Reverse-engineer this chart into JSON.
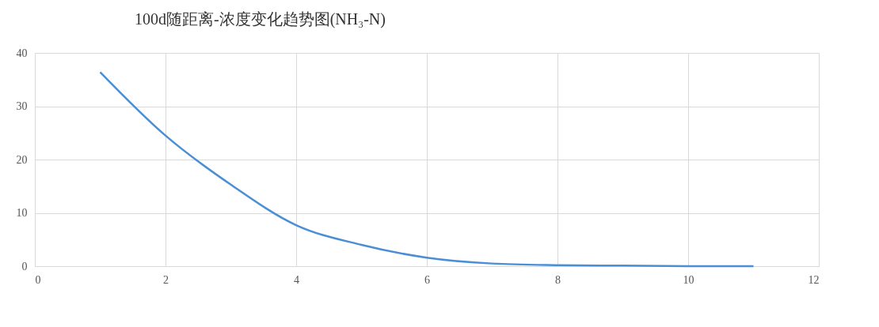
{
  "chart_data": {
    "type": "line",
    "title": "100d随距离-浓度变化趋势图(NH₃-N)",
    "x": [
      1,
      2,
      3,
      4,
      5,
      6,
      7,
      8,
      9,
      10,
      11
    ],
    "series": [
      {
        "color": "#4a8fd6",
        "values": [
          36.4,
          24.5,
          15.3,
          7.7,
          4.0,
          1.6,
          0.5,
          0.2,
          0.1,
          0,
          0
        ]
      }
    ],
    "xlim": [
      0,
      12
    ],
    "xticks": [
      0,
      2,
      4,
      6,
      8,
      10,
      12
    ],
    "ylim": [
      0,
      40
    ],
    "yticks": [
      0,
      10,
      20,
      30,
      40
    ],
    "grid": true,
    "marker": "none",
    "line_style": "solid"
  }
}
